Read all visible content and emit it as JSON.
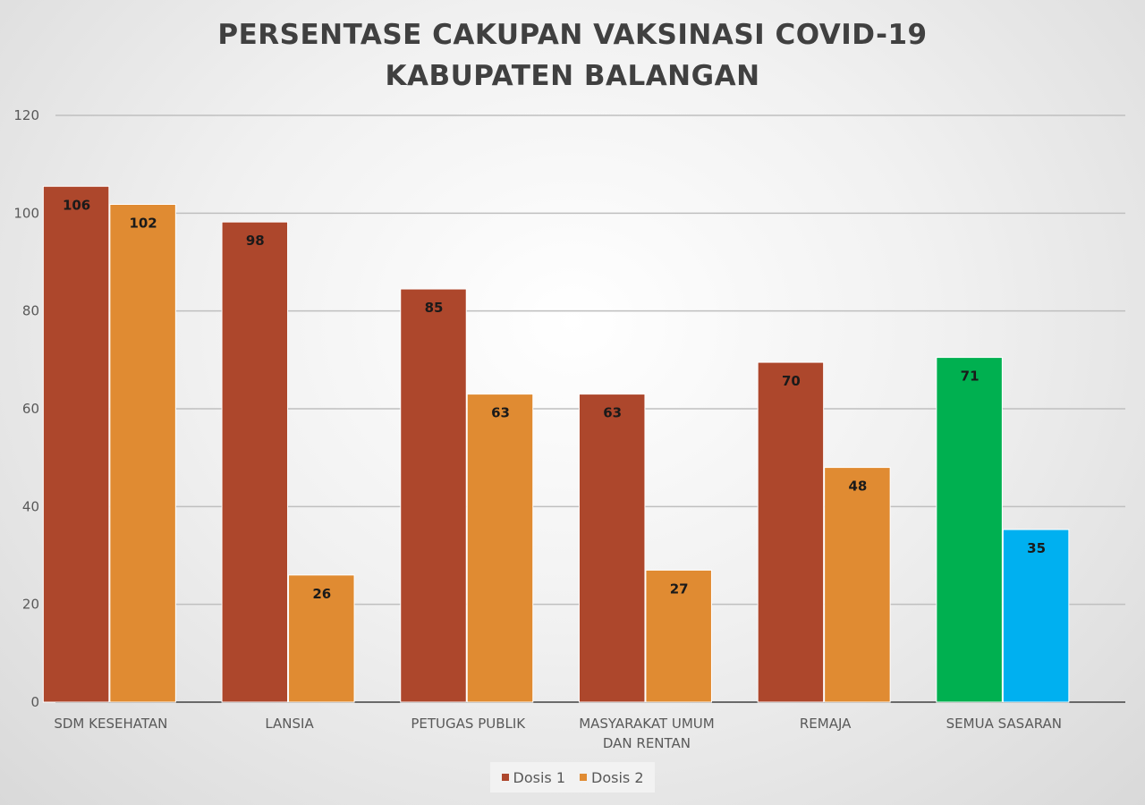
{
  "chart_data": {
    "type": "bar",
    "title_lines": [
      "PERSENTASE CAKUPAN VAKSINASI COVID-19",
      "KABUPATEN BALANGAN"
    ],
    "categories": [
      [
        "SDM KESEHATAN"
      ],
      [
        "LANSIA"
      ],
      [
        "PETUGAS PUBLIK"
      ],
      [
        "MASYARAKAT UMUM",
        "DAN RENTAN"
      ],
      [
        "REMAJA"
      ],
      [
        "SEMUA SASARAN"
      ]
    ],
    "series": [
      {
        "name": "Dosis 1",
        "color": "#ad472c",
        "values": [
          105.5,
          98.2,
          84.5,
          63.0,
          69.5,
          70.5
        ],
        "labels": [
          "106",
          "98",
          "85",
          "63",
          "70",
          "71"
        ],
        "point_colors": [
          "#ad472c",
          "#ad472c",
          "#ad472c",
          "#ad472c",
          "#ad472c",
          "#00b050"
        ]
      },
      {
        "name": "Dosis 2",
        "color": "#e08b32",
        "values": [
          101.8,
          26.0,
          63.0,
          27.0,
          48.0,
          35.3
        ],
        "labels": [
          "102",
          "26",
          "63",
          "27",
          "48",
          "35"
        ],
        "point_colors": [
          "#e08b32",
          "#e08b32",
          "#e08b32",
          "#e08b32",
          "#e08b32",
          "#00b0f0"
        ]
      }
    ],
    "ylim": [
      0,
      120
    ],
    "yticks": [
      0,
      20,
      40,
      60,
      80,
      100,
      120
    ],
    "grid": true,
    "legend_position": "bottom"
  }
}
